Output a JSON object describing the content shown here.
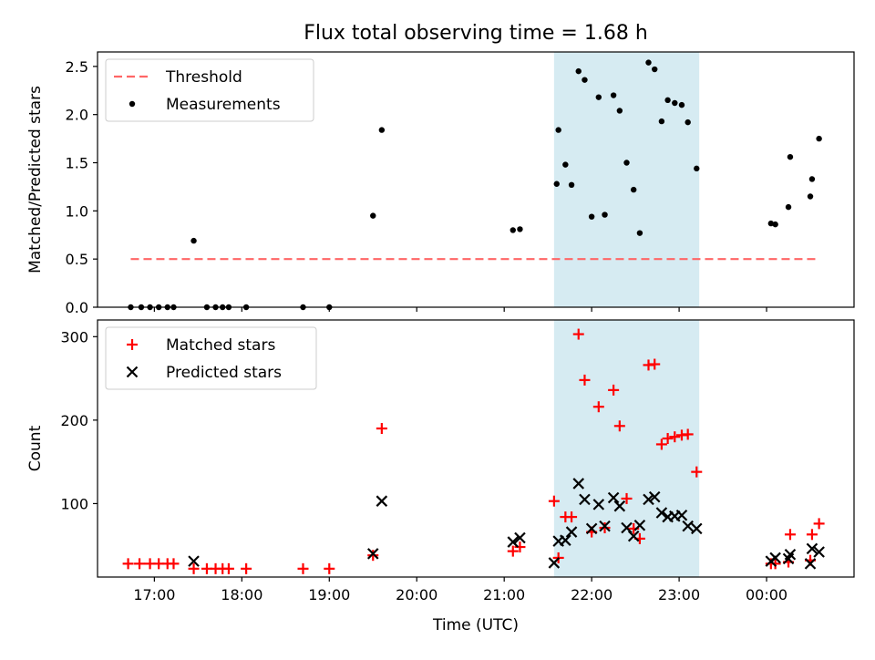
{
  "figure": {
    "title": "Flux total observing time = 1.68 h",
    "xlabel": "Time (UTC)",
    "x_ticks": [
      {
        "t": 17.0,
        "label": "17:00"
      },
      {
        "t": 18.0,
        "label": "18:00"
      },
      {
        "t": 19.0,
        "label": "19:00"
      },
      {
        "t": 20.0,
        "label": "20:00"
      },
      {
        "t": 21.0,
        "label": "21:00"
      },
      {
        "t": 22.0,
        "label": "22:00"
      },
      {
        "t": 23.0,
        "label": "23:00"
      },
      {
        "t": 24.0,
        "label": "00:00"
      }
    ],
    "x_unit_note": "time in hours UTC; values >= 24 are past midnight",
    "xlim": [
      16.35,
      25.0
    ],
    "shaded_span": {
      "start": 21.57,
      "end": 23.23,
      "color": "#add8e6"
    }
  },
  "chart_data": [
    {
      "type": "scatter",
      "panel": "top",
      "ylabel": "Matched/Predicted stars",
      "ylim": [
        0,
        2.65
      ],
      "y_ticks": [
        "0.0",
        "0.5",
        "1.0",
        "1.5",
        "2.0",
        "2.5"
      ],
      "y_tick_values": [
        0,
        0.5,
        1.0,
        1.5,
        2.0,
        2.5
      ],
      "legend": {
        "placement": "upper-left",
        "entries": [
          "Threshold",
          "Measurements"
        ]
      },
      "threshold": {
        "name": "Threshold",
        "value": 0.5,
        "x": [
          16.73,
          24.6
        ],
        "color": "#ff6666",
        "style": "dashed"
      },
      "series": [
        {
          "name": "Measurements",
          "color": "#000000",
          "x": [
            16.73,
            16.85,
            16.95,
            17.05,
            17.15,
            17.22,
            17.45,
            17.6,
            17.7,
            17.78,
            17.85,
            18.05,
            18.7,
            19.0,
            19.5,
            19.6,
            21.1,
            21.18,
            21.6,
            21.62,
            21.7,
            21.77,
            21.85,
            21.92,
            22.0,
            22.08,
            22.15,
            22.25,
            22.32,
            22.4,
            22.48,
            22.55,
            22.65,
            22.72,
            22.8,
            22.87,
            22.95,
            23.03,
            23.1,
            23.2,
            24.05,
            24.1,
            24.25,
            24.27,
            24.5,
            24.52,
            24.6
          ],
          "y": [
            0,
            0,
            0,
            0,
            0,
            0,
            0.69,
            0,
            0,
            0,
            0,
            0,
            0,
            0,
            0.95,
            1.84,
            0.8,
            0.81,
            1.28,
            1.84,
            1.48,
            1.27,
            2.45,
            2.36,
            0.94,
            2.18,
            0.96,
            2.2,
            2.04,
            1.5,
            1.22,
            0.77,
            2.54,
            2.47,
            1.93,
            2.15,
            2.12,
            2.1,
            1.92,
            1.44,
            0.87,
            0.86,
            1.04,
            1.56,
            1.15,
            1.33,
            1.75
          ]
        }
      ]
    },
    {
      "type": "scatter",
      "panel": "bottom",
      "ylabel": "Count",
      "ylim": [
        12,
        320
      ],
      "y_ticks": [
        "100",
        "200",
        "300"
      ],
      "y_tick_values": [
        100,
        200,
        300
      ],
      "legend": {
        "placement": "upper-left",
        "entries": [
          "Matched stars",
          "Predicted stars"
        ]
      },
      "series": [
        {
          "name": "Matched stars",
          "marker": "plus",
          "color": "#ff0000",
          "x": [
            16.7,
            16.83,
            16.95,
            17.05,
            17.15,
            17.22,
            17.45,
            17.6,
            17.7,
            17.78,
            17.85,
            18.05,
            18.7,
            19.0,
            19.5,
            19.6,
            21.1,
            21.18,
            21.57,
            21.62,
            21.7,
            21.77,
            21.85,
            21.92,
            22.0,
            22.08,
            22.15,
            22.25,
            22.32,
            22.4,
            22.48,
            22.55,
            22.65,
            22.72,
            22.8,
            22.87,
            22.95,
            23.03,
            23.1,
            23.2,
            24.05,
            24.1,
            24.25,
            24.27,
            24.5,
            24.52,
            24.6
          ],
          "y": [
            28,
            28,
            28,
            28,
            28,
            28,
            22,
            22,
            22,
            22,
            22,
            22,
            22,
            22,
            38,
            190,
            43,
            48,
            103,
            35,
            84,
            84,
            303,
            248,
            66,
            216,
            71,
            236,
            193,
            106,
            70,
            58,
            266,
            267,
            171,
            178,
            180,
            182,
            183,
            138,
            28,
            28,
            30,
            63,
            32,
            63,
            76
          ]
        },
        {
          "name": "Predicted stars",
          "marker": "x",
          "color": "#000000",
          "x": [
            17.45,
            19.5,
            19.6,
            21.1,
            21.18,
            21.57,
            21.62,
            21.7,
            21.77,
            21.85,
            21.92,
            22.0,
            22.08,
            22.15,
            22.25,
            22.32,
            22.4,
            22.48,
            22.55,
            22.65,
            22.72,
            22.8,
            22.87,
            22.95,
            23.03,
            23.1,
            23.2,
            24.05,
            24.1,
            24.25,
            24.27,
            24.5,
            24.52,
            24.6
          ],
          "y": [
            31,
            40,
            103,
            54,
            59,
            29,
            55,
            56,
            66,
            124,
            105,
            70,
            99,
            73,
            107,
            97,
            71,
            61,
            74,
            105,
            108,
            89,
            84,
            85,
            86,
            73,
            70,
            31,
            35,
            34,
            39,
            28,
            46,
            42
          ]
        }
      ]
    }
  ]
}
